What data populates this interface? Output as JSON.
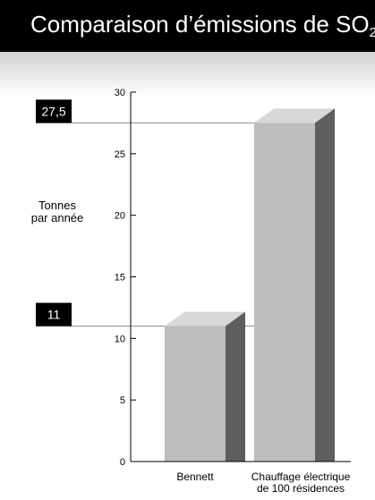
{
  "chart_data": {
    "type": "bar",
    "title": "Comparaison d’émissions de SO",
    "title_subscript": "2",
    "ylabel_lines": [
      "Tonnes",
      "par année"
    ],
    "categories": [
      [
        "Bennett"
      ],
      [
        "Chauffage électrique",
        "de 100 résidences"
      ]
    ],
    "values": [
      11,
      27.5
    ],
    "value_labels": [
      "11",
      "27,5"
    ],
    "ylim": [
      0,
      30
    ],
    "yticks": [
      0,
      5,
      10,
      15,
      20,
      25,
      30
    ],
    "legend": "none",
    "grid": false,
    "colors": {
      "bar_front": "#bdbdbd",
      "bar_side": "#5e5e5e",
      "bar_top": "#d8d8d8",
      "callout_bg": "#000000",
      "reference_line": "#8a8a8a"
    }
  }
}
